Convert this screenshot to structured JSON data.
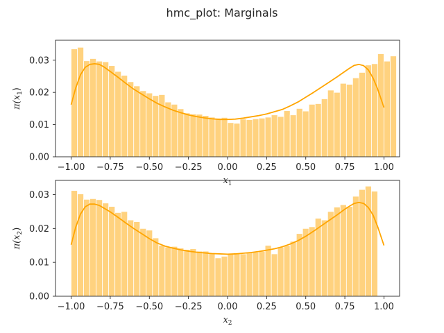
{
  "figure": {
    "suptitle": "hmc_plot: Marginals"
  },
  "chart_data": [
    {
      "type": "bar",
      "title": "",
      "xlabel": "x",
      "xlabel_sub": "1",
      "ylabel": "π(x",
      "ylabel_sub": "1",
      "ylabel_close": ")",
      "xlim": [
        -1.1,
        1.1
      ],
      "ylim": [
        0,
        0.0362
      ],
      "xticks": [
        -1.0,
        -0.75,
        -0.5,
        -0.25,
        0.0,
        0.25,
        0.5,
        0.75,
        1.0
      ],
      "xtick_labels": [
        "−1.00",
        "−0.75",
        "−0.50",
        "−0.25",
        "0.00",
        "0.25",
        "0.50",
        "0.75",
        "1.00"
      ],
      "yticks": [
        0,
        0.01,
        0.02,
        0.03
      ],
      "ytick_labels": [
        "0.00",
        "0.01",
        "0.02",
        "0.03"
      ],
      "grid": false,
      "bar_color": "#ffd27f",
      "kde_color": "#ffa500",
      "bin_start": -1.0,
      "bin_width": 0.04,
      "values": [
        0.0335,
        0.034,
        0.0298,
        0.0305,
        0.0297,
        0.0295,
        0.0283,
        0.0265,
        0.0253,
        0.0233,
        0.022,
        0.0205,
        0.0198,
        0.019,
        0.0193,
        0.017,
        0.0163,
        0.0149,
        0.0136,
        0.0133,
        0.0132,
        0.0128,
        0.0123,
        0.012,
        0.0122,
        0.0106,
        0.0104,
        0.0117,
        0.0115,
        0.0118,
        0.012,
        0.0123,
        0.013,
        0.0125,
        0.0143,
        0.013,
        0.015,
        0.0142,
        0.0163,
        0.0165,
        0.018,
        0.0207,
        0.02,
        0.0228,
        0.0225,
        0.0245,
        0.0262,
        0.0285,
        0.0289,
        0.032,
        0.0297,
        0.0313
      ],
      "kde_x": [
        -1.0,
        -0.97,
        -0.94,
        -0.91,
        -0.88,
        -0.85,
        -0.82,
        -0.79,
        -0.75,
        -0.7,
        -0.65,
        -0.6,
        -0.55,
        -0.5,
        -0.45,
        -0.4,
        -0.35,
        -0.3,
        -0.25,
        -0.2,
        -0.15,
        -0.1,
        -0.05,
        0.0,
        0.05,
        0.1,
        0.15,
        0.2,
        0.25,
        0.3,
        0.35,
        0.4,
        0.45,
        0.5,
        0.55,
        0.6,
        0.65,
        0.7,
        0.75,
        0.78,
        0.81,
        0.84,
        0.87,
        0.9,
        0.93,
        0.96,
        1.0
      ],
      "kde_y": [
        0.0162,
        0.0215,
        0.0255,
        0.0278,
        0.0287,
        0.0289,
        0.0287,
        0.0279,
        0.0265,
        0.0247,
        0.0228,
        0.021,
        0.0195,
        0.018,
        0.0166,
        0.0155,
        0.0145,
        0.0137,
        0.013,
        0.0125,
        0.0121,
        0.0118,
        0.0116,
        0.0116,
        0.0117,
        0.012,
        0.0124,
        0.0128,
        0.0133,
        0.014,
        0.0147,
        0.0158,
        0.017,
        0.0185,
        0.02,
        0.0216,
        0.0232,
        0.0248,
        0.0265,
        0.0275,
        0.0284,
        0.0287,
        0.0283,
        0.027,
        0.0245,
        0.021,
        0.0153
      ]
    },
    {
      "type": "bar",
      "title": "",
      "xlabel": "x",
      "xlabel_sub": "2",
      "ylabel": "π(x",
      "ylabel_sub": "2",
      "ylabel_close": ")",
      "xlim": [
        -1.1,
        1.1
      ],
      "ylim": [
        0,
        0.0342
      ],
      "xticks": [
        -1.0,
        -0.75,
        -0.5,
        -0.25,
        0.0,
        0.25,
        0.5,
        0.75,
        1.0
      ],
      "xtick_labels": [
        "−1.00",
        "−0.75",
        "−0.50",
        "−0.25",
        "0.00",
        "0.25",
        "0.50",
        "0.75",
        "1.00"
      ],
      "yticks": [
        0,
        0.01,
        0.02,
        0.03
      ],
      "ytick_labels": [
        "0.00",
        "0.01",
        "0.02",
        "0.03"
      ],
      "grid": false,
      "bar_color": "#ffd27f",
      "kde_color": "#ffa500",
      "bin_start": -1.0,
      "bin_width": 0.04,
      "values": [
        0.0312,
        0.0302,
        0.0286,
        0.0288,
        0.0285,
        0.0275,
        0.0265,
        0.0247,
        0.025,
        0.0225,
        0.022,
        0.02,
        0.0195,
        0.0172,
        0.015,
        0.0145,
        0.0147,
        0.0142,
        0.0138,
        0.014,
        0.0133,
        0.0133,
        0.0128,
        0.0113,
        0.0118,
        0.0125,
        0.0128,
        0.0125,
        0.013,
        0.013,
        0.0133,
        0.015,
        0.0125,
        0.0145,
        0.015,
        0.0162,
        0.0185,
        0.02,
        0.0205,
        0.023,
        0.0225,
        0.025,
        0.0263,
        0.027,
        0.0265,
        0.0295,
        0.0315,
        0.0325,
        0.031
      ],
      "kde_x": [
        -1.0,
        -0.97,
        -0.94,
        -0.91,
        -0.88,
        -0.85,
        -0.82,
        -0.79,
        -0.75,
        -0.7,
        -0.65,
        -0.6,
        -0.55,
        -0.5,
        -0.45,
        -0.4,
        -0.35,
        -0.3,
        -0.25,
        -0.2,
        -0.15,
        -0.1,
        -0.05,
        0.0,
        0.05,
        0.1,
        0.15,
        0.2,
        0.25,
        0.3,
        0.35,
        0.4,
        0.45,
        0.5,
        0.55,
        0.6,
        0.65,
        0.7,
        0.75,
        0.78,
        0.81,
        0.84,
        0.87,
        0.9,
        0.93,
        0.96,
        1.0
      ],
      "kde_y": [
        0.0152,
        0.0205,
        0.0243,
        0.0264,
        0.0272,
        0.0272,
        0.0268,
        0.026,
        0.0249,
        0.0233,
        0.0216,
        0.02,
        0.0185,
        0.017,
        0.0157,
        0.0148,
        0.0142,
        0.0137,
        0.0133,
        0.013,
        0.0128,
        0.0126,
        0.0125,
        0.0124,
        0.0125,
        0.0127,
        0.0129,
        0.0132,
        0.0136,
        0.014,
        0.0146,
        0.0154,
        0.0164,
        0.0177,
        0.0192,
        0.0208,
        0.0224,
        0.024,
        0.0257,
        0.0266,
        0.0274,
        0.0277,
        0.0274,
        0.0262,
        0.024,
        0.0205,
        0.015
      ]
    }
  ]
}
